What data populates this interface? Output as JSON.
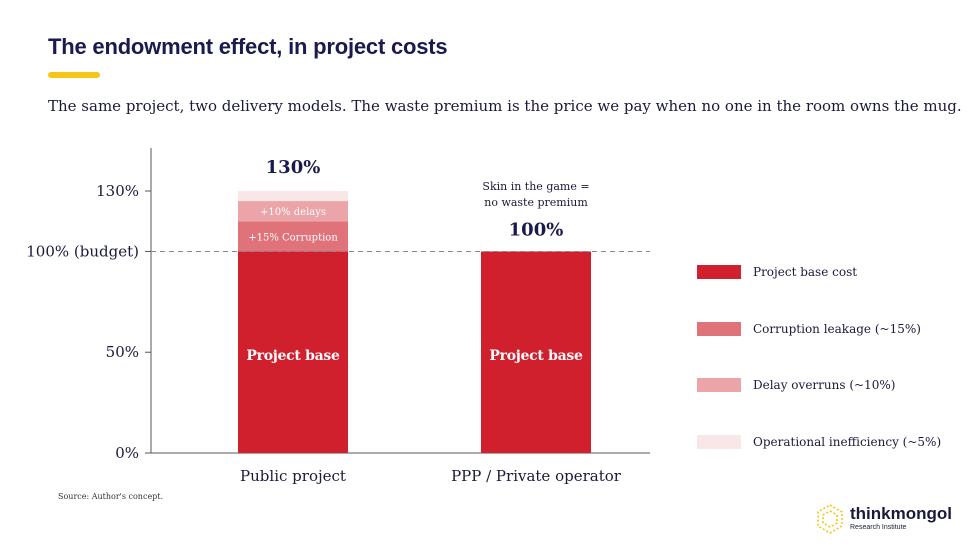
{
  "header": {
    "title": "The endowment effect, in project costs",
    "subtitle": "The same project, two delivery models. The waste premium is the price we pay when no one in the room owns the mug."
  },
  "chart_data": {
    "type": "bar",
    "stacked": true,
    "categories": [
      "Public project",
      "PPP / Private operator"
    ],
    "series": [
      {
        "name": "Project base cost",
        "values": [
          100,
          100
        ],
        "color": "#d0202e"
      },
      {
        "name": "Corruption leakage (~15%)",
        "values": [
          15,
          0
        ],
        "color": "#e0737a"
      },
      {
        "name": "Delay overruns (~10%)",
        "values": [
          10,
          0
        ],
        "color": "#eba4a8"
      },
      {
        "name": "Operational inefficiency (~5%)",
        "values": [
          5,
          0
        ],
        "color": "#f9e6e7"
      }
    ],
    "ylim": [
      0,
      130
    ],
    "yticks": [
      {
        "value": 0,
        "label": "0%"
      },
      {
        "value": 50,
        "label": "50%"
      },
      {
        "value": 100,
        "label": "100% (budget)"
      },
      {
        "value": 130,
        "label": "130%"
      }
    ],
    "reference_line": {
      "value": 100
    },
    "bar_labels": [
      {
        "category": 0,
        "series": 0,
        "text": "Project base"
      },
      {
        "category": 0,
        "series": 1,
        "text": "+15% Corruption"
      },
      {
        "category": 0,
        "series": 2,
        "text": "+10% delays"
      },
      {
        "category": 1,
        "series": 0,
        "text": "Project base"
      }
    ],
    "totals": [
      "130%",
      "100%"
    ],
    "annotation": {
      "category": 1,
      "lines": [
        "Skin in the game =",
        "no waste premium"
      ]
    },
    "legend_position": "right"
  },
  "footer": {
    "source": "Source: Author's concept.",
    "logo_name": "thinkmongol",
    "logo_sub": "Research Institute"
  },
  "colors": {
    "accent": "#f5c518",
    "navy": "#1a1a4e"
  }
}
